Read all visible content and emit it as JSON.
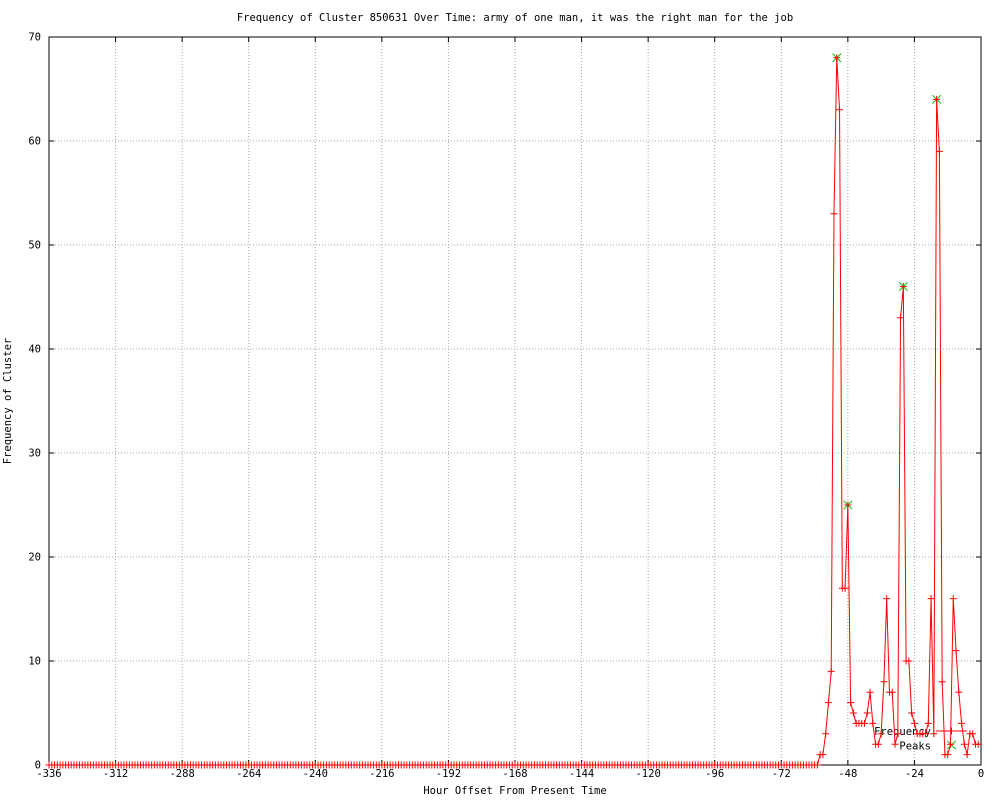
{
  "title": "Frequency of Cluster 850631 Over Time: army of one man, it was the right man for the job",
  "colors": {
    "frequency_line": "#ff0000",
    "peaks_marker": "#00c000",
    "grid": "#a8a8a8",
    "border": "#000000",
    "text": "#000000",
    "background": "#ffffff"
  },
  "chart_data": {
    "type": "line",
    "title": "Frequency of Cluster 850631 Over Time: army of one man, it was the right man for the job",
    "xlabel": "Hour Offset From Present Time",
    "ylabel": "Frequency of Cluster",
    "xlim": [
      -336,
      0
    ],
    "ylim": [
      0,
      70
    ],
    "xticks": [
      -336,
      -312,
      -288,
      -264,
      -240,
      -216,
      -192,
      -168,
      -144,
      -120,
      -96,
      -72,
      -48,
      -24,
      0
    ],
    "yticks": [
      0,
      10,
      20,
      30,
      40,
      50,
      60,
      70
    ],
    "grid": true,
    "legend_position": "inside-bottom-right",
    "series": [
      {
        "name": "Frequency",
        "style": "linespoints",
        "marker": "plus",
        "color": "#ff0000",
        "zeros": {
          "from": -336,
          "to": -59,
          "value": 0
        },
        "points": [
          [
            -58,
            1
          ],
          [
            -57,
            1
          ],
          [
            -56,
            3
          ],
          [
            -55,
            6
          ],
          [
            -54,
            9
          ],
          [
            -53,
            53
          ],
          [
            -52,
            68
          ],
          [
            -51,
            63
          ],
          [
            -50,
            17
          ],
          [
            -49,
            17
          ],
          [
            -48,
            25
          ],
          [
            -47,
            6
          ],
          [
            -46,
            5
          ],
          [
            -45,
            4
          ],
          [
            -44,
            4
          ],
          [
            -43,
            4
          ],
          [
            -42,
            4
          ],
          [
            -41,
            5
          ],
          [
            -40,
            7
          ],
          [
            -39,
            4
          ],
          [
            -38,
            2
          ],
          [
            -37,
            2
          ],
          [
            -36,
            3
          ],
          [
            -35,
            8
          ],
          [
            -34,
            16
          ],
          [
            -33,
            7
          ],
          [
            -32,
            7
          ],
          [
            -31,
            2
          ],
          [
            -30,
            3
          ],
          [
            -29,
            43
          ],
          [
            -28,
            46
          ],
          [
            -27,
            10
          ],
          [
            -26,
            10
          ],
          [
            -25,
            5
          ],
          [
            -24,
            4
          ],
          [
            -23,
            3
          ],
          [
            -22,
            3
          ],
          [
            -21,
            3
          ],
          [
            -20,
            3
          ],
          [
            -19,
            4
          ],
          [
            -18,
            16
          ],
          [
            -17,
            3
          ],
          [
            -16,
            64
          ],
          [
            -15,
            59
          ],
          [
            -14,
            8
          ],
          [
            -13,
            1
          ],
          [
            -12,
            1
          ],
          [
            -11,
            2
          ],
          [
            -10,
            16
          ],
          [
            -9,
            11
          ],
          [
            -8,
            7
          ],
          [
            -7,
            4
          ],
          [
            -6,
            2
          ],
          [
            -5,
            1
          ],
          [
            -4,
            3
          ],
          [
            -3,
            3
          ],
          [
            -2,
            2
          ],
          [
            -1,
            2
          ]
        ]
      },
      {
        "name": "Peaks",
        "style": "points",
        "marker": "cross",
        "color": "#00c000",
        "points": [
          [
            -52,
            68
          ],
          [
            -48,
            25
          ],
          [
            -28,
            46
          ],
          [
            -16,
            64
          ]
        ]
      }
    ]
  }
}
